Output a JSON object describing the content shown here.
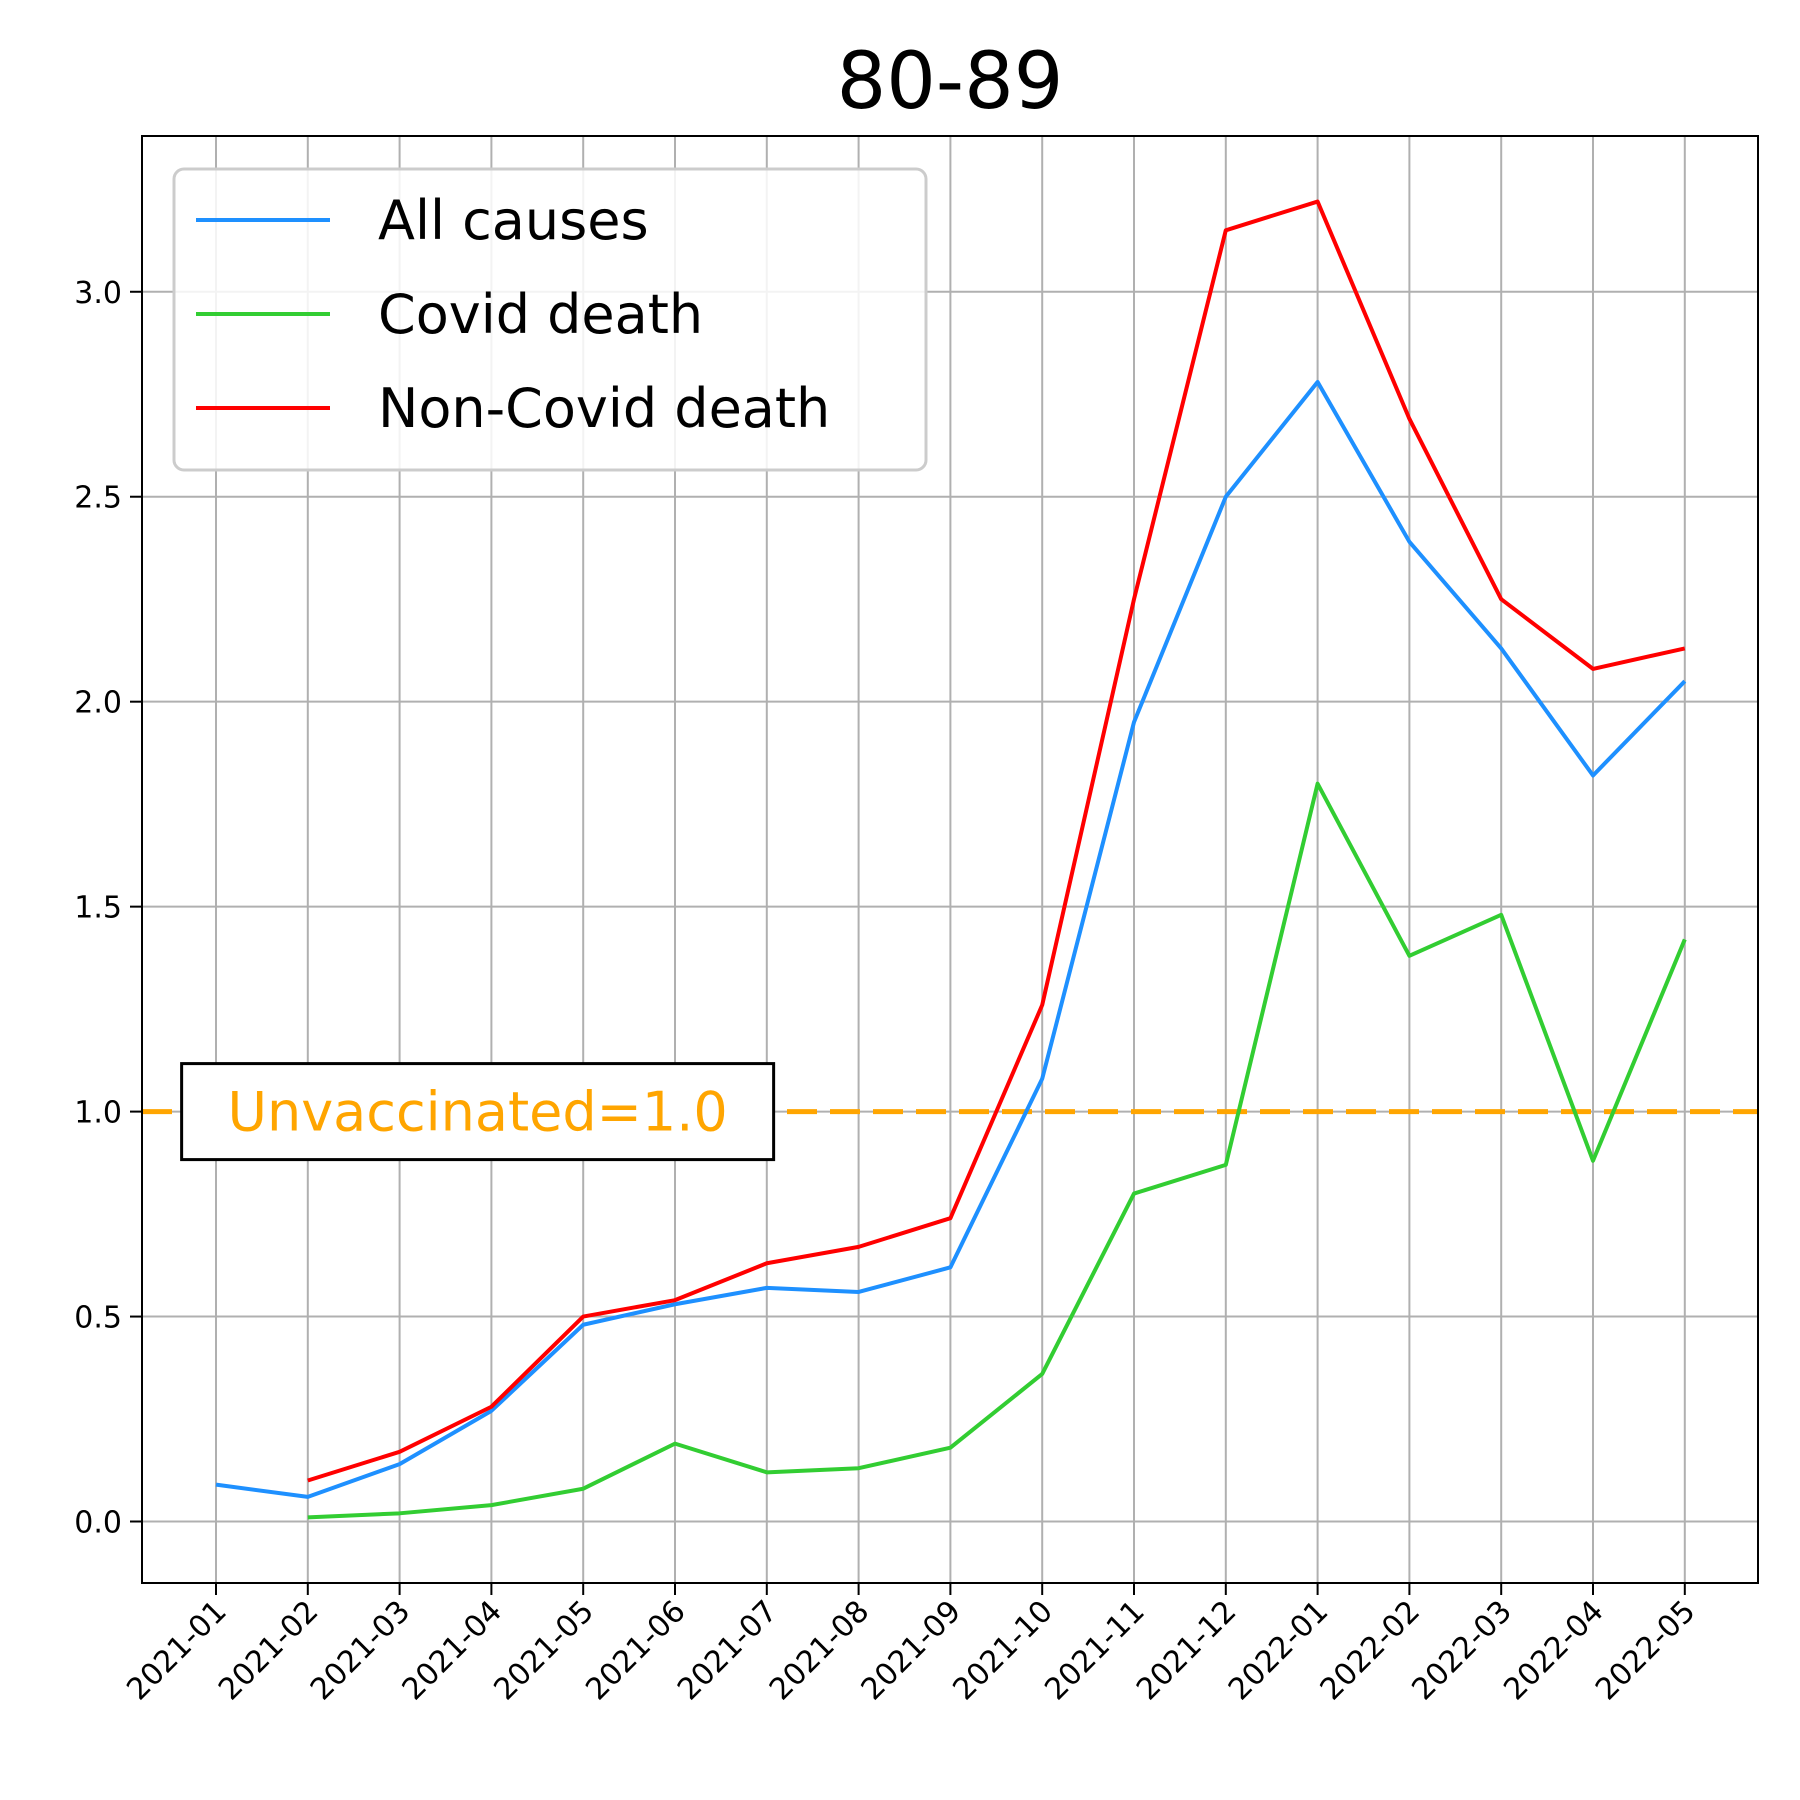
{
  "chart_data": {
    "type": "line",
    "title": "80-89",
    "xlabel": "",
    "ylabel": "",
    "categories": [
      "2021-01",
      "2021-02",
      "2021-03",
      "2021-04",
      "2021-05",
      "2021-06",
      "2021-07",
      "2021-08",
      "2021-09",
      "2021-10",
      "2021-11",
      "2021-12",
      "2022-01",
      "2022-02",
      "2022-03",
      "2022-04",
      "2022-05"
    ],
    "ylim": [
      -0.15,
      3.38
    ],
    "yticks": [
      0.0,
      0.5,
      1.0,
      1.5,
      2.0,
      2.5,
      3.0
    ],
    "ytick_labels": [
      "0.0",
      "0.5",
      "1.0",
      "1.5",
      "2.0",
      "2.5",
      "3.0"
    ],
    "grid": true,
    "legend_position": "top-left",
    "series": [
      {
        "name": "All causes",
        "color": "#1e90ff",
        "values": [
          0.09,
          0.06,
          0.14,
          0.27,
          0.48,
          0.53,
          0.57,
          0.56,
          0.62,
          1.08,
          1.95,
          2.5,
          2.78,
          2.39,
          2.13,
          1.82,
          2.05
        ]
      },
      {
        "name": "Covid death",
        "color": "#32cd32",
        "values": [
          null,
          0.01,
          0.02,
          0.04,
          0.08,
          0.19,
          0.12,
          0.13,
          0.18,
          0.36,
          0.8,
          0.87,
          1.8,
          1.38,
          1.48,
          0.88,
          1.42
        ]
      },
      {
        "name": "Non-Covid death",
        "color": "#ff0000",
        "values": [
          null,
          0.1,
          0.17,
          0.28,
          0.5,
          0.54,
          0.63,
          0.67,
          0.74,
          1.26,
          2.25,
          3.15,
          3.22,
          2.69,
          2.25,
          2.08,
          2.13
        ]
      }
    ],
    "reference_line": {
      "value": 1.0,
      "color": "#ffa500",
      "style": "dashed"
    },
    "annotation": {
      "text": "Unvaccinated=1.0",
      "color": "#ffa500",
      "x_category_index": 2.85,
      "y": 1.0
    }
  }
}
